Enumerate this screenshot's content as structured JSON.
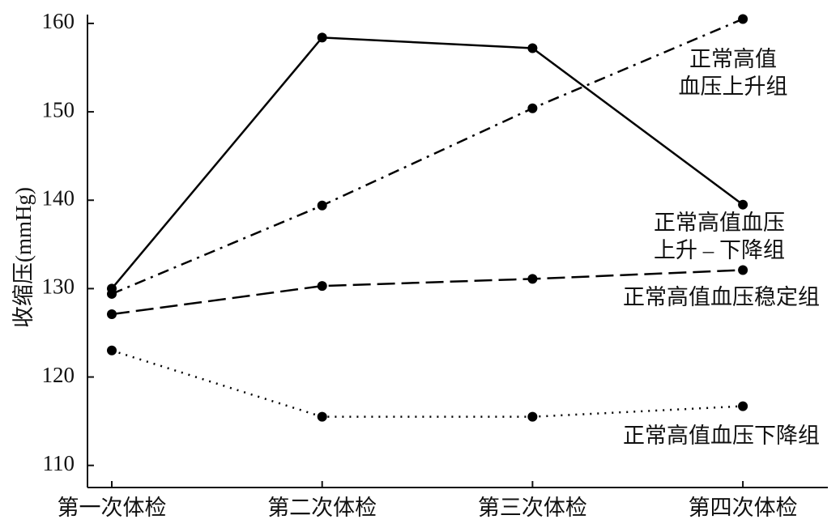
{
  "chart_data": {
    "type": "line",
    "y_label": "收缩压(mmHg)",
    "categories": [
      "第一次体检",
      "第二次体检",
      "第三次体检",
      "第四次体检"
    ],
    "ylim": [
      107.5,
      161
    ],
    "yticks": [
      110,
      120,
      130,
      140,
      150,
      160
    ],
    "series": [
      {
        "name": "正常高值\n血压上升组",
        "color": "#000000",
        "dash": "dashdot",
        "values": [
          129.4,
          139.4,
          150.4,
          160.5
        ]
      },
      {
        "name": "正常高值血压\n上升 – 下降组",
        "color": "#000000",
        "dash": "solid",
        "values": [
          130.0,
          158.4,
          157.2,
          139.5
        ]
      },
      {
        "name": "正常高值血压稳定组",
        "color": "#000000",
        "dash": "dashed",
        "values": [
          127.1,
          130.3,
          131.1,
          132.1
        ]
      },
      {
        "name": "正常高值血压下降组",
        "color": "#000000",
        "dash": "dotted",
        "values": [
          123.0,
          115.5,
          115.5,
          116.7
        ]
      }
    ]
  }
}
